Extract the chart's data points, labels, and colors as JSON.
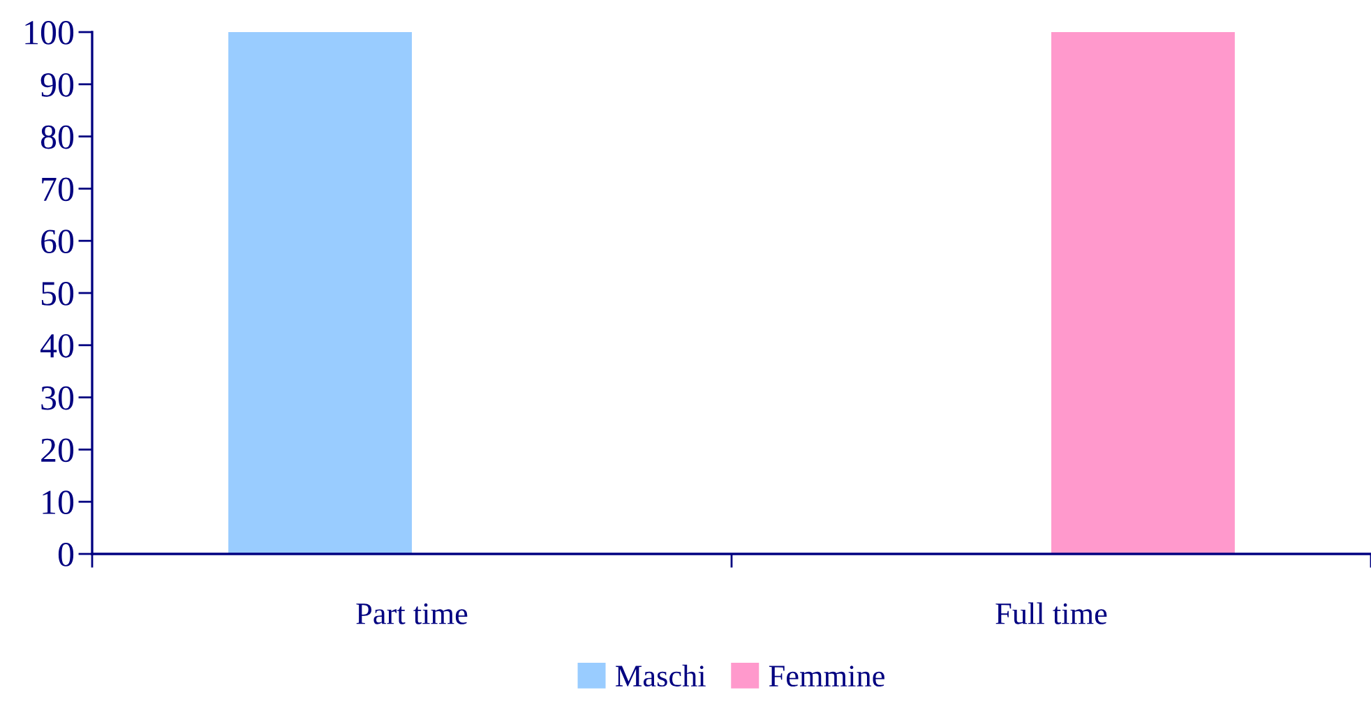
{
  "chart_data": {
    "type": "bar",
    "categories": [
      "Part time",
      "Full time"
    ],
    "series": [
      {
        "name": "Maschi",
        "color": "#99ccff",
        "values": [
          100,
          0
        ]
      },
      {
        "name": "Femmine",
        "color": "#ff99cc",
        "values": [
          0,
          100
        ]
      }
    ],
    "ylim": [
      0,
      100
    ],
    "yticks": [
      0,
      10,
      20,
      30,
      40,
      50,
      60,
      70,
      80,
      90,
      100
    ],
    "legend": "bottom"
  }
}
